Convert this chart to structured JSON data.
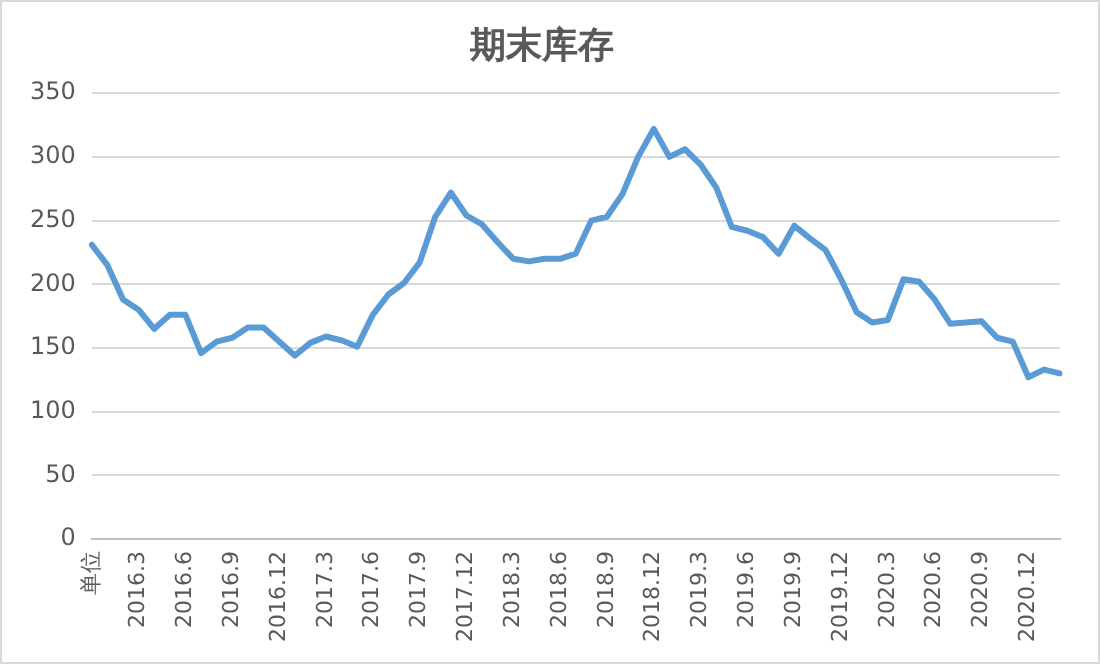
{
  "chart_data": {
    "type": "line",
    "title": "期末库存",
    "categories": [
      "单位",
      null,
      null,
      "2016.3",
      null,
      null,
      "2016.6",
      null,
      null,
      "2016.9",
      null,
      null,
      "2016.12",
      null,
      null,
      "2017.3",
      null,
      null,
      "2017.6",
      null,
      null,
      "2017.9",
      null,
      null,
      "2017.12",
      null,
      null,
      "2018.3",
      null,
      null,
      "2018.6",
      null,
      null,
      "2018.9",
      null,
      null,
      "2018.12",
      null,
      null,
      "2019.3",
      null,
      null,
      "2019.6",
      null,
      null,
      "2019.9",
      null,
      null,
      "2019.12",
      null,
      null,
      "2020.3",
      null,
      null,
      "2020.6",
      null,
      null,
      "2020.9",
      null,
      null,
      "2020.12",
      null,
      null
    ],
    "series": [
      {
        "color": "#5b9bd5",
        "values": [
          231,
          215,
          188,
          180,
          165,
          176,
          176,
          146,
          155,
          158,
          166,
          166,
          155,
          144,
          154,
          159,
          156,
          151,
          176,
          192,
          201,
          217,
          253,
          272,
          254,
          247,
          233,
          220,
          218,
          220,
          220,
          224,
          250,
          253,
          271,
          300,
          322,
          300,
          306,
          294,
          276,
          245,
          242,
          237,
          224,
          246,
          236,
          227,
          204,
          178,
          170,
          172,
          204,
          202,
          188,
          169,
          170,
          171,
          158,
          155,
          127,
          133,
          130
        ]
      }
    ],
    "ylim": [
      0,
      350
    ],
    "yticks": [
      0,
      50,
      100,
      150,
      200,
      250,
      300,
      350
    ],
    "grid": "y",
    "legend": false,
    "marker": "none",
    "line_style": "solid"
  }
}
